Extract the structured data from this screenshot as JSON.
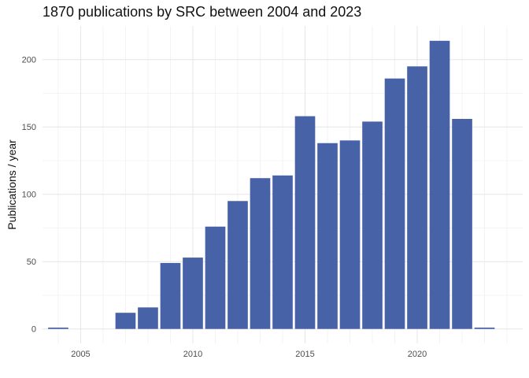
{
  "chart_data": {
    "type": "bar",
    "title": "1870 publications by SRC between 2004 and 2023",
    "xlabel": "",
    "ylabel": "Publications / year",
    "x": [
      2004,
      2005,
      2006,
      2007,
      2008,
      2009,
      2010,
      2011,
      2012,
      2013,
      2014,
      2015,
      2016,
      2017,
      2018,
      2019,
      2020,
      2021,
      2022,
      2023
    ],
    "values": [
      1,
      0,
      0,
      12,
      16,
      49,
      53,
      76,
      95,
      112,
      114,
      158,
      138,
      140,
      154,
      186,
      195,
      214,
      156,
      1
    ],
    "x_ticks": [
      2005,
      2010,
      2015,
      2020
    ],
    "y_ticks": [
      0,
      50,
      100,
      150,
      200
    ],
    "xlim": [
      2003.3,
      2024.7
    ],
    "ylim": [
      -10.7,
      225
    ],
    "bar_color": "#4762a6",
    "grid": true,
    "legend": "none"
  }
}
